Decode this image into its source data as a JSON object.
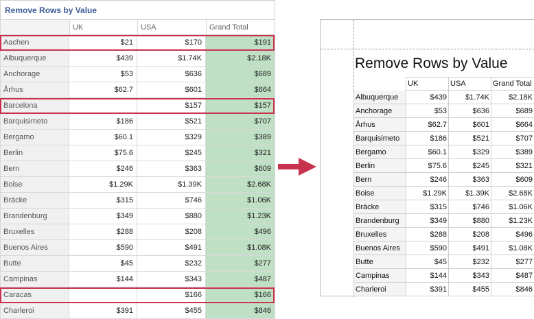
{
  "left": {
    "title": "Remove Rows by Value",
    "columns": [
      "UK",
      "USA",
      "Grand Total"
    ],
    "rows": [
      {
        "name": "Aachen",
        "uk": "$21",
        "usa": "$170",
        "total": "$191",
        "highlight": true
      },
      {
        "name": "Albuquerque",
        "uk": "$439",
        "usa": "$1.74K",
        "total": "$2.18K"
      },
      {
        "name": "Anchorage",
        "uk": "$53",
        "usa": "$636",
        "total": "$689"
      },
      {
        "name": "Århus",
        "uk": "$62.7",
        "usa": "$601",
        "total": "$664"
      },
      {
        "name": "Barcelona",
        "uk": "",
        "usa": "$157",
        "total": "$157",
        "highlight": true
      },
      {
        "name": "Barquisimeto",
        "uk": "$186",
        "usa": "$521",
        "total": "$707"
      },
      {
        "name": "Bergamo",
        "uk": "$60.1",
        "usa": "$329",
        "total": "$389"
      },
      {
        "name": "Berlin",
        "uk": "$75.6",
        "usa": "$245",
        "total": "$321"
      },
      {
        "name": "Bern",
        "uk": "$246",
        "usa": "$363",
        "total": "$609"
      },
      {
        "name": "Boise",
        "uk": "$1.29K",
        "usa": "$1.39K",
        "total": "$2.68K"
      },
      {
        "name": "Bräcke",
        "uk": "$315",
        "usa": "$746",
        "total": "$1.06K"
      },
      {
        "name": "Brandenburg",
        "uk": "$349",
        "usa": "$880",
        "total": "$1.23K"
      },
      {
        "name": "Bruxelles",
        "uk": "$288",
        "usa": "$208",
        "total": "$496"
      },
      {
        "name": "Buenos Aires",
        "uk": "$590",
        "usa": "$491",
        "total": "$1.08K"
      },
      {
        "name": "Butte",
        "uk": "$45",
        "usa": "$232",
        "total": "$277"
      },
      {
        "name": "Campinas",
        "uk": "$144",
        "usa": "$343",
        "total": "$487"
      },
      {
        "name": "Caracas",
        "uk": "",
        "usa": "$166",
        "total": "$166",
        "highlight": true
      },
      {
        "name": "Charleroi",
        "uk": "$391",
        "usa": "$455",
        "total": "$846"
      }
    ]
  },
  "right": {
    "title": "Remove Rows by Value",
    "columns": [
      "UK",
      "USA",
      "Grand Total"
    ],
    "rows": [
      {
        "name": "Albuquerque",
        "uk": "$439",
        "usa": "$1.74K",
        "total": "$2.18K"
      },
      {
        "name": "Anchorage",
        "uk": "$53",
        "usa": "$636",
        "total": "$689"
      },
      {
        "name": "Århus",
        "uk": "$62.7",
        "usa": "$601",
        "total": "$664"
      },
      {
        "name": "Barquisimeto",
        "uk": "$186",
        "usa": "$521",
        "total": "$707"
      },
      {
        "name": "Bergamo",
        "uk": "$60.1",
        "usa": "$329",
        "total": "$389"
      },
      {
        "name": "Berlin",
        "uk": "$75.6",
        "usa": "$245",
        "total": "$321"
      },
      {
        "name": "Bern",
        "uk": "$246",
        "usa": "$363",
        "total": "$609"
      },
      {
        "name": "Boise",
        "uk": "$1.29K",
        "usa": "$1.39K",
        "total": "$2.68K"
      },
      {
        "name": "Bräcke",
        "uk": "$315",
        "usa": "$746",
        "total": "$1.06K"
      },
      {
        "name": "Brandenburg",
        "uk": "$349",
        "usa": "$880",
        "total": "$1.23K"
      },
      {
        "name": "Bruxelles",
        "uk": "$288",
        "usa": "$208",
        "total": "$496"
      },
      {
        "name": "Buenos Aires",
        "uk": "$590",
        "usa": "$491",
        "total": "$1.08K"
      },
      {
        "name": "Butte",
        "uk": "$45",
        "usa": "$232",
        "total": "$277"
      },
      {
        "name": "Campinas",
        "uk": "$144",
        "usa": "$343",
        "total": "$487"
      },
      {
        "name": "Charleroi",
        "uk": "$391",
        "usa": "$455",
        "total": "$846"
      }
    ]
  },
  "colors": {
    "title": "#3d5b98",
    "total_fill": "#bfe0c4",
    "highlight_border": "#c8324f",
    "arrow": "#c8324f"
  },
  "icons": {
    "arrow": "arrow-right-icon"
  }
}
